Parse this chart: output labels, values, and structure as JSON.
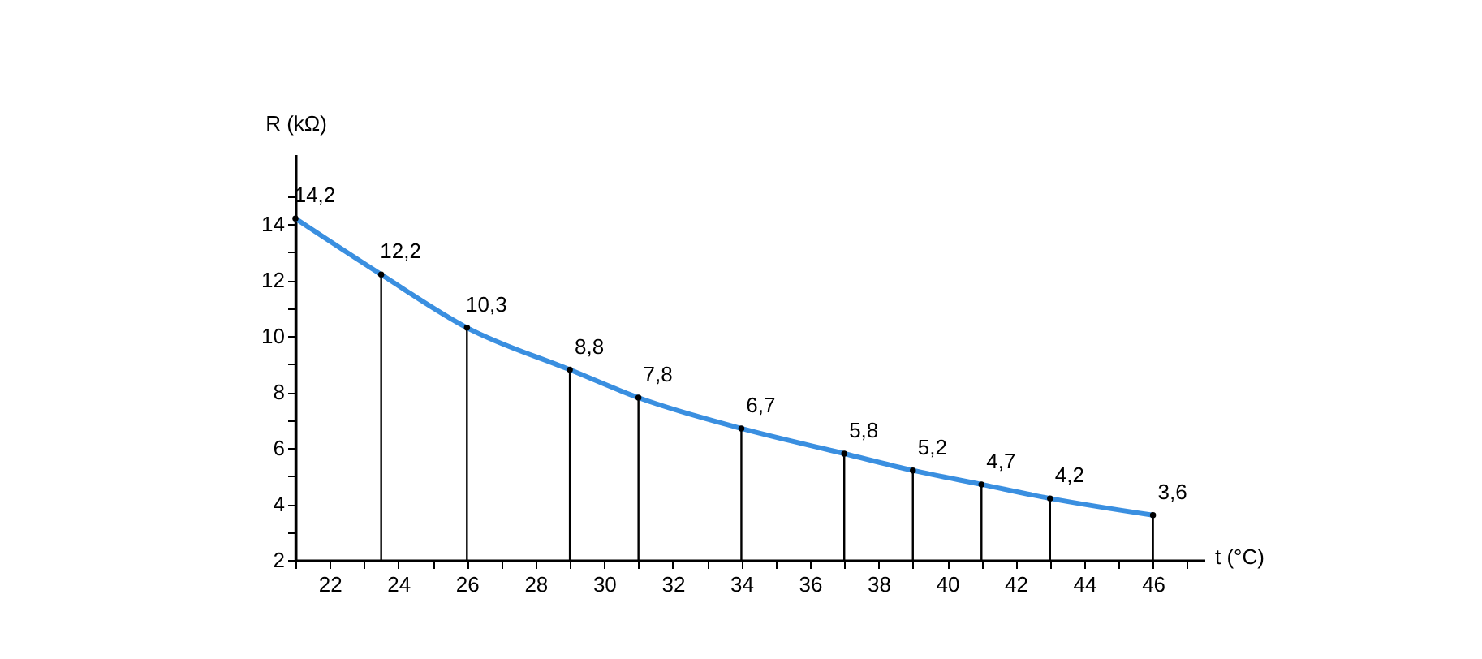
{
  "chart_data": {
    "type": "line",
    "xlabel": "t (°C)",
    "ylabel": "R (kΩ)",
    "x": [
      21,
      23.5,
      26,
      29,
      31,
      34,
      37,
      39,
      41,
      43,
      46
    ],
    "series": [
      {
        "type": "lollipop",
        "color": "#000000",
        "marker": "circle",
        "values": [
          14.2,
          12.2,
          10.3,
          8.8,
          7.8,
          6.7,
          5.8,
          5.2,
          4.7,
          4.2,
          3.6
        ]
      },
      {
        "type": "line",
        "color": "#3a8fe0",
        "values": [
          14.2,
          12.2,
          10.3,
          8.8,
          7.8,
          6.7,
          5.8,
          5.2,
          4.7,
          4.2,
          3.6
        ],
        "value_labels": [
          "14,2",
          "12,2",
          "10,3",
          "8,8",
          "7,8",
          "6,7",
          "5,8",
          "5,2",
          "4,7",
          "4,2",
          "3,6"
        ]
      }
    ],
    "xlim": [
      21,
      47.5
    ],
    "xticks": [
      {
        "value": 21,
        "label": null
      },
      22,
      {
        "value": 23,
        "label": null
      },
      24,
      {
        "value": 25,
        "label": null
      },
      26,
      {
        "value": 27,
        "label": null
      },
      28,
      {
        "value": 29,
        "label": null
      },
      30,
      {
        "value": 31,
        "label": null
      },
      32,
      {
        "value": 33,
        "label": null
      },
      34,
      {
        "value": 35,
        "label": null
      },
      36,
      {
        "value": 37,
        "label": null
      },
      38,
      {
        "value": 39,
        "label": null
      },
      40,
      {
        "value": 41,
        "label": null
      },
      42,
      {
        "value": 43,
        "label": null
      },
      44,
      {
        "value": 45,
        "label": null
      },
      46,
      {
        "value": 47,
        "label": null
      }
    ],
    "ylim": [
      2,
      16.5
    ],
    "yticks": [
      2,
      {
        "value": 3,
        "label": null
      },
      4,
      {
        "value": 5,
        "label": null
      },
      6,
      {
        "value": 7,
        "label": null
      },
      8,
      {
        "value": 9,
        "label": null
      },
      10,
      {
        "value": 11,
        "label": null
      },
      12,
      {
        "value": 13,
        "label": null
      },
      14,
      {
        "value": 15,
        "label": null
      }
    ],
    "grid": false
  }
}
